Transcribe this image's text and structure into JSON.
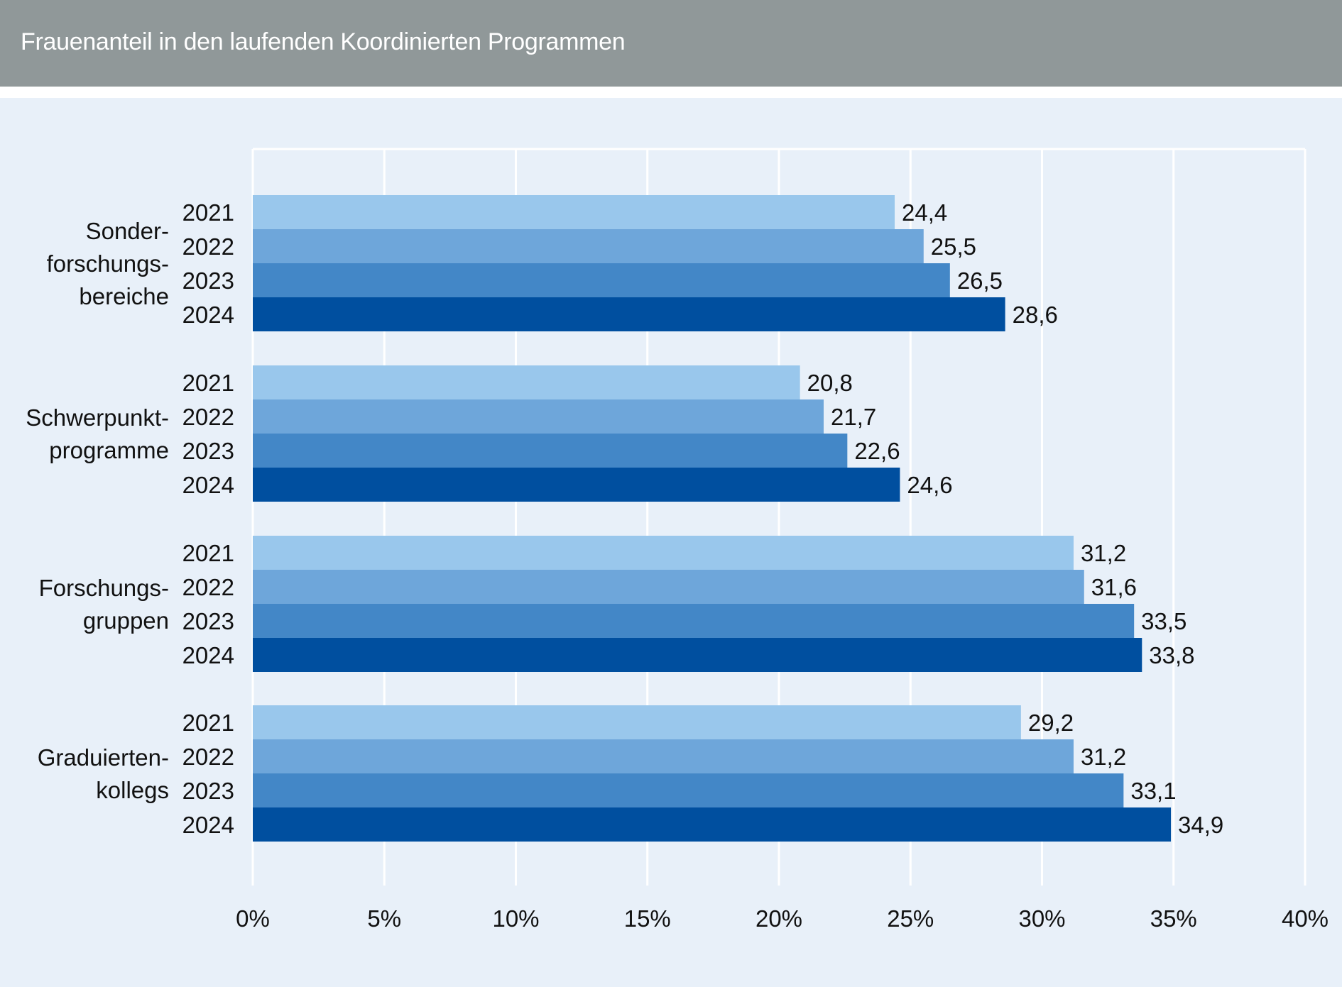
{
  "header": {
    "title": "Frauenanteil in den laufenden Koordinierten Programmen"
  },
  "colors": {
    "header_bg": "#909899",
    "background": "#e8f0f9",
    "gridline": "#ffffff",
    "text": "#111111"
  },
  "chart_data": {
    "type": "bar",
    "orientation": "horizontal",
    "title": "Frauenanteil in den laufenden Koordinierten Programmen",
    "xlabel": "",
    "ylabel": "",
    "xlim": [
      0,
      40
    ],
    "x_ticks": [
      "0%",
      "5%",
      "10%",
      "15%",
      "20%",
      "25%",
      "30%",
      "35%",
      "40%"
    ],
    "x_tick_values": [
      0,
      5,
      10,
      15,
      20,
      25,
      30,
      35,
      40
    ],
    "grid": true,
    "categories": [
      {
        "lines": [
          "Sonder-",
          "forschungs-",
          "bereiche"
        ]
      },
      {
        "lines": [
          "Schwerpunkt-",
          "programme"
        ]
      },
      {
        "lines": [
          "Forschungs-",
          "gruppen"
        ]
      },
      {
        "lines": [
          "Graduierten-",
          "kollegs"
        ]
      }
    ],
    "series": [
      {
        "name": "2021",
        "color": "#99c7ec",
        "values": [
          24.4,
          20.8,
          31.2,
          29.2
        ],
        "labels": [
          "24,4",
          "20,8",
          "31,2",
          "29,2"
        ]
      },
      {
        "name": "2022",
        "color": "#6ea6da",
        "values": [
          25.5,
          21.7,
          31.6,
          31.2
        ],
        "labels": [
          "25,5",
          "21,7",
          "31,6",
          "31,2"
        ]
      },
      {
        "name": "2023",
        "color": "#4387c7",
        "values": [
          26.5,
          22.6,
          33.5,
          33.1
        ],
        "labels": [
          "26,5",
          "22,6",
          "33,5",
          "33,1"
        ]
      },
      {
        "name": "2024",
        "color": "#004f9f",
        "values": [
          28.6,
          24.6,
          33.8,
          34.9
        ],
        "labels": [
          "28,6",
          "24,6",
          "33,8",
          "34,9"
        ]
      }
    ]
  }
}
